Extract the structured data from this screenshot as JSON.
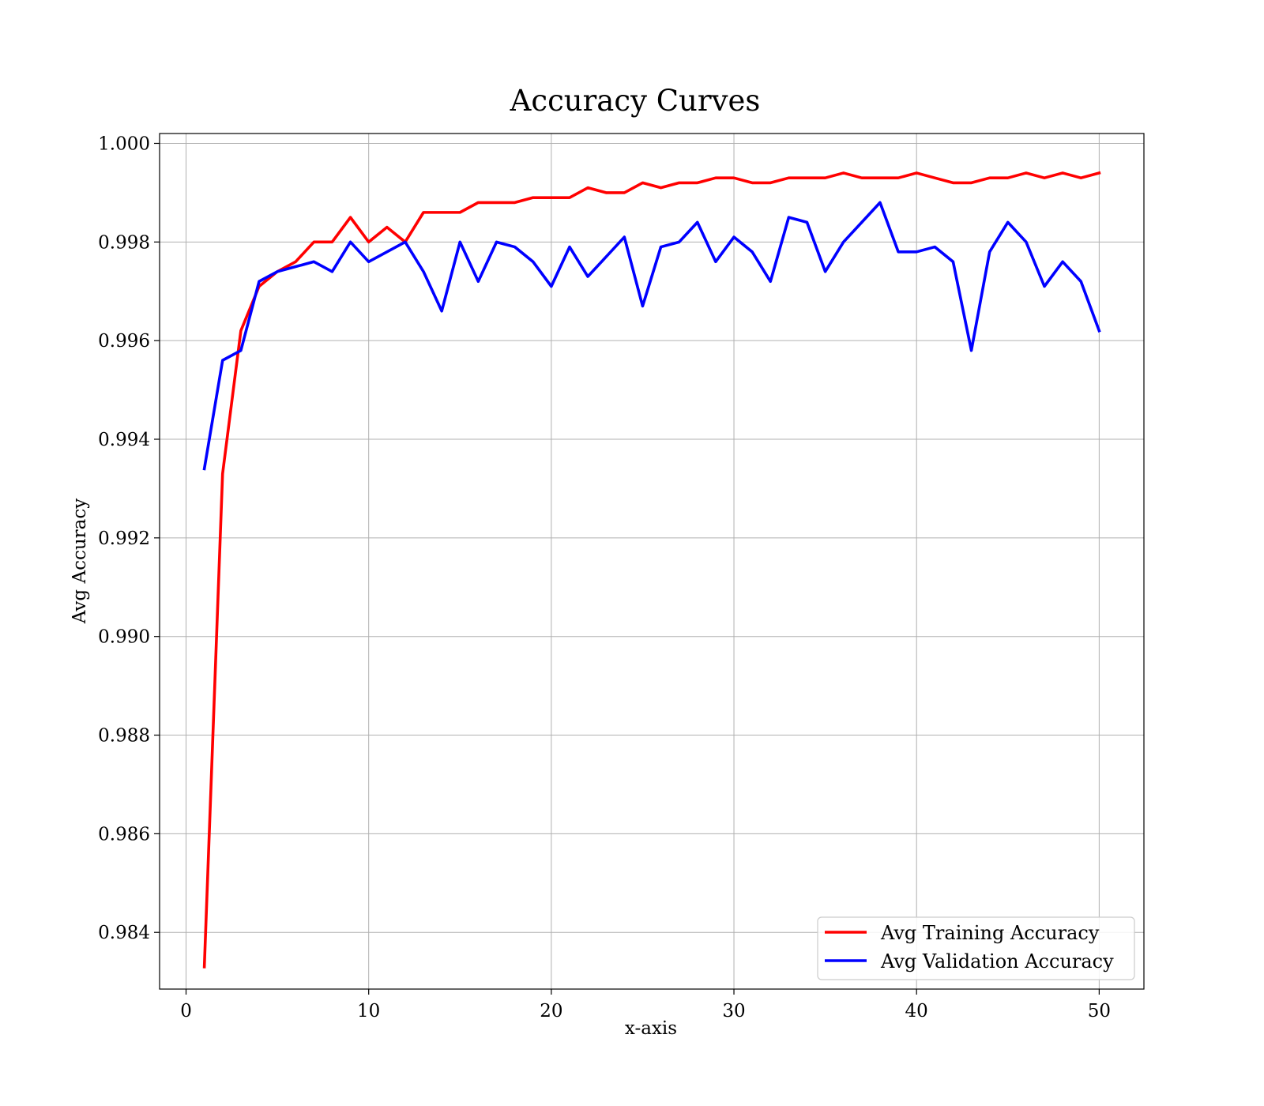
{
  "chart_data": {
    "type": "line",
    "title": "Accuracy Curves",
    "xlabel": "x-axis",
    "ylabel": "Avg Accuracy",
    "xlim": [
      -1.45,
      52.45
    ],
    "ylim": [
      0.98285,
      1.0002
    ],
    "xticks": [
      0,
      10,
      20,
      30,
      40,
      50
    ],
    "xtick_labels": [
      "0",
      "10",
      "20",
      "30",
      "40",
      "50"
    ],
    "yticks": [
      0.984,
      0.986,
      0.988,
      0.99,
      0.992,
      0.994,
      0.996,
      0.998,
      1.0
    ],
    "ytick_labels": [
      "0.984",
      "0.986",
      "0.988",
      "0.990",
      "0.992",
      "0.994",
      "0.996",
      "0.998",
      "1.000"
    ],
    "grid": true,
    "legend_position": "lower-right",
    "x": [
      1,
      2,
      3,
      4,
      5,
      6,
      7,
      8,
      9,
      10,
      11,
      12,
      13,
      14,
      15,
      16,
      17,
      18,
      19,
      20,
      21,
      22,
      23,
      24,
      25,
      26,
      27,
      28,
      29,
      30,
      31,
      32,
      33,
      34,
      35,
      36,
      37,
      38,
      39,
      40,
      41,
      42,
      43,
      44,
      45,
      46,
      47,
      48,
      49,
      50
    ],
    "series": [
      {
        "name": "Avg Training Accuracy",
        "color": "#ff0000",
        "values": [
          0.9833,
          0.9933,
          0.9962,
          0.9971,
          0.9974,
          0.9976,
          0.998,
          0.998,
          0.9985,
          0.998,
          0.9983,
          0.998,
          0.9986,
          0.9986,
          0.9986,
          0.9988,
          0.9988,
          0.9988,
          0.9989,
          0.9989,
          0.9989,
          0.9991,
          0.999,
          0.999,
          0.9992,
          0.9991,
          0.9992,
          0.9992,
          0.9993,
          0.9993,
          0.9992,
          0.9992,
          0.9993,
          0.9993,
          0.9993,
          0.9994,
          0.9993,
          0.9993,
          0.9993,
          0.9994,
          0.9993,
          0.9992,
          0.9992,
          0.9993,
          0.9993,
          0.9994,
          0.9993,
          0.9994,
          0.9993,
          0.9994
        ]
      },
      {
        "name": "Avg Validation Accuracy",
        "color": "#0000ff",
        "values": [
          0.9934,
          0.9956,
          0.9958,
          0.9972,
          0.9974,
          0.9975,
          0.9976,
          0.9974,
          0.998,
          0.9976,
          0.9978,
          0.998,
          0.9974,
          0.9966,
          0.998,
          0.9972,
          0.998,
          0.9979,
          0.9976,
          0.9971,
          0.9979,
          0.9973,
          0.9977,
          0.9981,
          0.9967,
          0.9979,
          0.998,
          0.9984,
          0.9976,
          0.9981,
          0.9978,
          0.9972,
          0.9985,
          0.9984,
          0.9974,
          0.998,
          0.9984,
          0.9988,
          0.9978,
          0.9978,
          0.9979,
          0.9976,
          0.9958,
          0.9978,
          0.9984,
          0.998,
          0.9971,
          0.9976,
          0.9972,
          0.9962
        ]
      }
    ]
  }
}
